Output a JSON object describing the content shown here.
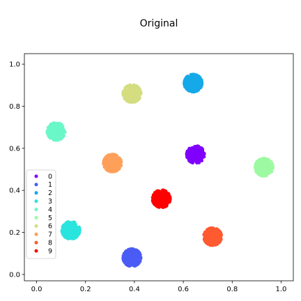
{
  "chart_data": {
    "type": "scatter",
    "title": "Original",
    "xlabel": "",
    "ylabel": "",
    "xlim": [
      -0.05,
      1.05
    ],
    "ylim": [
      -0.03,
      1.05
    ],
    "xticks": [
      "0.0",
      "0.2",
      "0.4",
      "0.6",
      "0.8",
      "1.0"
    ],
    "yticks": [
      "0.0",
      "0.2",
      "0.4",
      "0.6",
      "0.8",
      "1.0"
    ],
    "grid": false,
    "legend_position": "lower-left",
    "series": [
      {
        "name": "0",
        "color": "#8000ff",
        "center": [
          0.65,
          0.57
        ],
        "spread": 0.036,
        "n": 240
      },
      {
        "name": "1",
        "color": "#4a5cf5",
        "center": [
          0.39,
          0.08
        ],
        "spread": 0.036,
        "n": 240
      },
      {
        "name": "2",
        "color": "#15a9e8",
        "center": [
          0.64,
          0.91
        ],
        "spread": 0.036,
        "n": 240
      },
      {
        "name": "3",
        "color": "#2ae4de",
        "center": [
          0.14,
          0.21
        ],
        "spread": 0.036,
        "n": 240
      },
      {
        "name": "4",
        "color": "#6bf7c7",
        "center": [
          0.08,
          0.68
        ],
        "spread": 0.036,
        "n": 240
      },
      {
        "name": "5",
        "color": "#9dfaa2",
        "center": [
          0.93,
          0.51
        ],
        "spread": 0.036,
        "n": 240
      },
      {
        "name": "6",
        "color": "#d4dd80",
        "center": [
          0.39,
          0.86
        ],
        "spread": 0.036,
        "n": 240
      },
      {
        "name": "7",
        "color": "#ffa05a",
        "center": [
          0.31,
          0.53
        ],
        "spread": 0.036,
        "n": 240
      },
      {
        "name": "8",
        "color": "#ff5a30",
        "center": [
          0.72,
          0.18
        ],
        "spread": 0.036,
        "n": 240
      },
      {
        "name": "9",
        "color": "#ff0000",
        "center": [
          0.51,
          0.36
        ],
        "spread": 0.036,
        "n": 240
      }
    ]
  }
}
